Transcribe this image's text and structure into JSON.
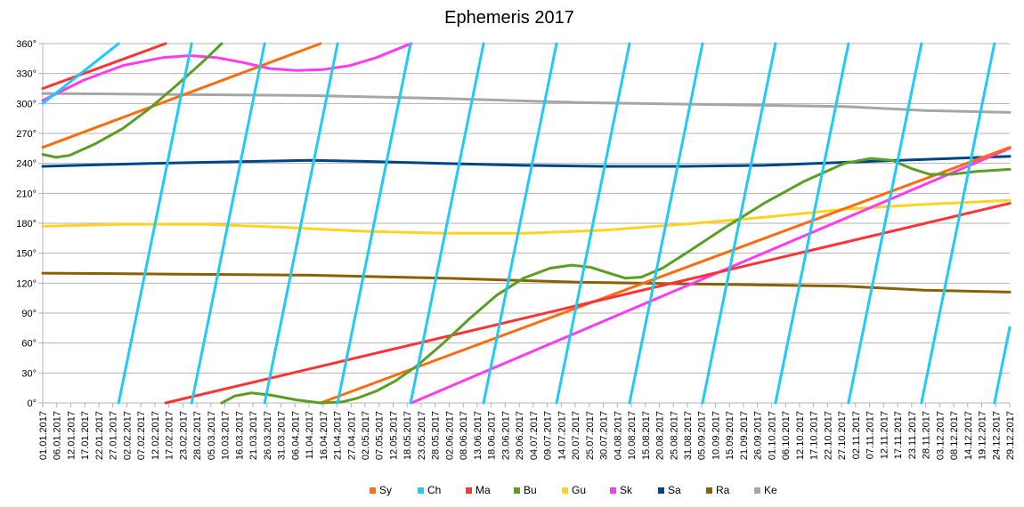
{
  "chart_data": {
    "type": "line",
    "title": "Ephemeris 2017",
    "xlabel": "",
    "ylabel": "",
    "ylim": [
      0,
      360
    ],
    "y_ticks": [
      "0°",
      "30°",
      "60°",
      "90°",
      "120°",
      "150°",
      "180°",
      "210°",
      "240°",
      "270°",
      "300°",
      "330°",
      "360°"
    ],
    "x_range_days": [
      0,
      362
    ],
    "x_tick_labels": [
      "01.01.2017",
      "06.01.2017",
      "12.01.2017",
      "17.01.2017",
      "22.01.2017",
      "27.01.2017",
      "02.02.2017",
      "07.02.2017",
      "12.02.2017",
      "17.02.2017",
      "23.02.2017",
      "28.02.2017",
      "05.03.2017",
      "10.03.2017",
      "16.03.2017",
      "21.03.2017",
      "26.03.2017",
      "31.03.2017",
      "06.04.2017",
      "11.04.2017",
      "16.04.2017",
      "21.04.2017",
      "27.04.2017",
      "02.05.2017",
      "07.05.2017",
      "12.05.2017",
      "18.05.2017",
      "23.05.2017",
      "28.05.2017",
      "02.06.2017",
      "08.06.2017",
      "13.06.2017",
      "18.06.2017",
      "23.06.2017",
      "29.06.2017",
      "04.07.2017",
      "09.07.2017",
      "14.07.2017",
      "20.07.2017",
      "25.07.2017",
      "30.07.2017",
      "04.08.2017",
      "10.08.2017",
      "15.08.2017",
      "20.08.2017",
      "25.08.2017",
      "31.08.2017",
      "05.09.2017",
      "10.09.2017",
      "15.09.2017",
      "21.09.2017",
      "26.09.2017",
      "01.10.2017",
      "06.10.2017",
      "12.10.2017",
      "17.10.2017",
      "22.10.2017",
      "27.10.2017",
      "02.11.2017",
      "07.11.2017",
      "12.11.2017",
      "17.11.2017",
      "23.11.2017",
      "28.11.2017",
      "03.12.2017",
      "08.12.2017",
      "14.12.2017",
      "19.12.2017",
      "24.12.2017",
      "29.12.2017"
    ],
    "grid": "horizontal",
    "legend_position": "bottom",
    "series": [
      {
        "name": "Sy",
        "color": "#ff6b0f",
        "points": [
          [
            0,
            256
          ],
          [
            104,
            360
          ],
          [
            104,
            0
          ],
          [
            362,
            256
          ]
        ]
      },
      {
        "name": "Ch",
        "color": "#1ecbf5",
        "moon": true
      },
      {
        "name": "Ma",
        "color": "#ff3333",
        "points": [
          [
            0,
            315
          ],
          [
            46,
            360
          ],
          [
            46,
            0
          ],
          [
            362,
            200
          ]
        ]
      },
      {
        "name": "Bu",
        "color": "#5a9e22",
        "points": [
          [
            0,
            249
          ],
          [
            5,
            246
          ],
          [
            10,
            248
          ],
          [
            20,
            260
          ],
          [
            30,
            275
          ],
          [
            40,
            295
          ],
          [
            50,
            318
          ],
          [
            60,
            342
          ],
          [
            67,
            360
          ],
          [
            67,
            0
          ],
          [
            72,
            7
          ],
          [
            78,
            10
          ],
          [
            85,
            8
          ],
          [
            95,
            3
          ],
          [
            104,
            0
          ],
          [
            112,
            1
          ],
          [
            118,
            5
          ],
          [
            125,
            12
          ],
          [
            132,
            22
          ],
          [
            140,
            37
          ],
          [
            150,
            60
          ],
          [
            160,
            85
          ],
          [
            170,
            108
          ],
          [
            180,
            125
          ],
          [
            190,
            135
          ],
          [
            198,
            138
          ],
          [
            205,
            136
          ],
          [
            212,
            130
          ],
          [
            218,
            125
          ],
          [
            224,
            126
          ],
          [
            232,
            135
          ],
          [
            242,
            152
          ],
          [
            255,
            175
          ],
          [
            270,
            200
          ],
          [
            285,
            222
          ],
          [
            300,
            240
          ],
          [
            310,
            245
          ],
          [
            318,
            243
          ],
          [
            325,
            235
          ],
          [
            332,
            229
          ],
          [
            340,
            229
          ],
          [
            350,
            232
          ],
          [
            362,
            234
          ]
        ]
      },
      {
        "name": "Gu",
        "color": "#ffd320",
        "points": [
          [
            0,
            177
          ],
          [
            30,
            179
          ],
          [
            60,
            179
          ],
          [
            90,
            176
          ],
          [
            120,
            172
          ],
          [
            150,
            170
          ],
          [
            180,
            170
          ],
          [
            210,
            173
          ],
          [
            240,
            179
          ],
          [
            270,
            186
          ],
          [
            300,
            194
          ],
          [
            330,
            199
          ],
          [
            362,
            203
          ]
        ]
      },
      {
        "name": "Sk",
        "color": "#ff3af2",
        "points": [
          [
            0,
            303
          ],
          [
            15,
            323
          ],
          [
            30,
            338
          ],
          [
            45,
            346
          ],
          [
            55,
            348
          ],
          [
            65,
            346
          ],
          [
            75,
            341
          ],
          [
            85,
            335
          ],
          [
            95,
            333
          ],
          [
            105,
            334
          ],
          [
            115,
            338
          ],
          [
            125,
            346
          ],
          [
            136,
            358
          ],
          [
            138,
            360
          ],
          [
            138,
            0
          ],
          [
            362,
            255
          ]
        ]
      },
      {
        "name": "Sa",
        "color": "#004586",
        "points": [
          [
            0,
            237
          ],
          [
            40,
            240
          ],
          [
            80,
            242
          ],
          [
            100,
            243
          ],
          [
            120,
            242
          ],
          [
            150,
            240
          ],
          [
            180,
            238
          ],
          [
            210,
            237
          ],
          [
            240,
            237
          ],
          [
            270,
            238
          ],
          [
            300,
            241
          ],
          [
            330,
            244
          ],
          [
            362,
            247
          ]
        ]
      },
      {
        "name": "Ra",
        "color": "#8b6000",
        "points": [
          [
            0,
            130
          ],
          [
            50,
            129
          ],
          [
            100,
            128
          ],
          [
            150,
            125
          ],
          [
            200,
            121
          ],
          [
            250,
            119
          ],
          [
            300,
            117
          ],
          [
            330,
            113
          ],
          [
            362,
            111
          ]
        ]
      },
      {
        "name": "Ke",
        "color": "#a6a6a6",
        "points": [
          [
            0,
            310
          ],
          [
            50,
            309
          ],
          [
            100,
            308
          ],
          [
            150,
            305
          ],
          [
            200,
            301
          ],
          [
            250,
            299
          ],
          [
            300,
            297
          ],
          [
            330,
            293
          ],
          [
            362,
            291
          ]
        ]
      }
    ]
  }
}
